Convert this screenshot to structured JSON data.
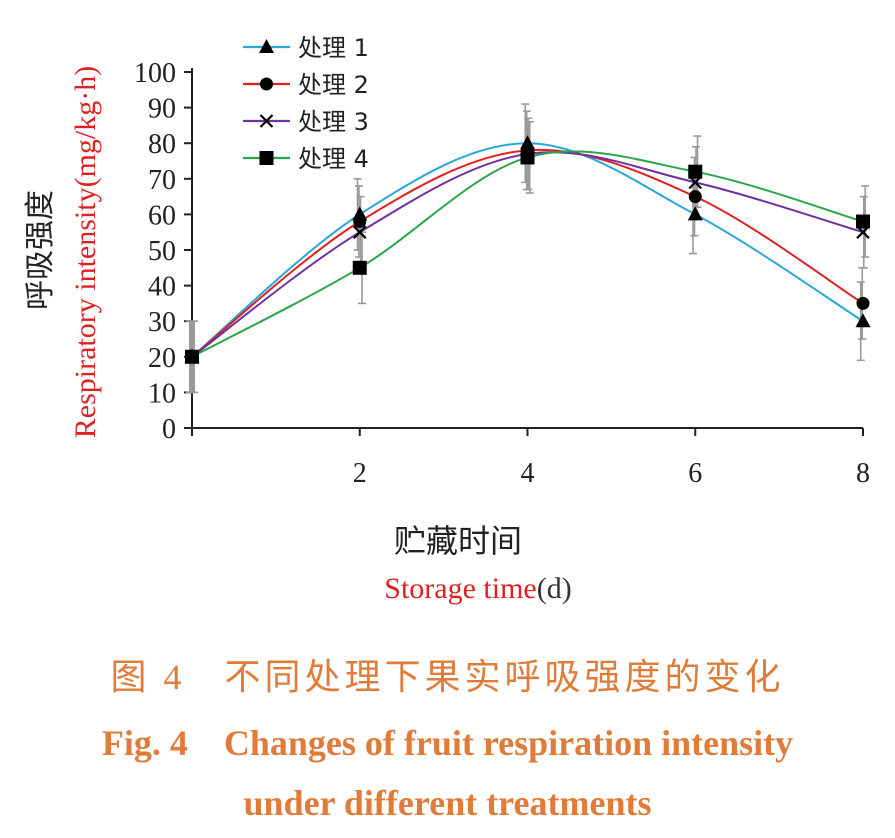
{
  "chart_data": {
    "type": "line",
    "x": [
      0,
      2,
      4,
      6,
      8
    ],
    "x_tick_labels": [
      "2",
      "4",
      "6",
      "8"
    ],
    "y_ticks": [
      0,
      10,
      20,
      30,
      40,
      50,
      60,
      70,
      80,
      90,
      100
    ],
    "ylim": [
      0,
      100
    ],
    "xlim": [
      0,
      8
    ],
    "ylabel_cn": "呼吸强度",
    "ylabel_en": "Respiratory intensity(mg/kg·h)",
    "xlabel_cn": "贮藏时间",
    "xlabel_en_main": "Storage time",
    "xlabel_en_unit": "(d)",
    "legend_position": "top-left",
    "series": [
      {
        "name": "处理 1",
        "marker": "triangle",
        "color": "#29a8d8",
        "values": [
          20,
          60,
          80,
          60,
          30
        ],
        "errors": [
          10,
          10,
          11,
          11,
          11
        ]
      },
      {
        "name": "处理 2",
        "marker": "circle",
        "color": "#e02020",
        "values": [
          20,
          58,
          78,
          65,
          35
        ],
        "errors": [
          10,
          10,
          11,
          11,
          10
        ]
      },
      {
        "name": "处理 3",
        "marker": "x",
        "color": "#7030a0",
        "values": [
          20,
          55,
          77,
          69,
          55
        ],
        "errors": [
          10,
          10,
          10,
          10,
          10
        ]
      },
      {
        "name": "处理 4",
        "marker": "square",
        "color": "#2aa64a",
        "values": [
          20,
          45,
          76,
          72,
          58
        ],
        "errors": [
          10,
          10,
          10,
          10,
          10
        ]
      }
    ]
  },
  "caption": {
    "cn_label": "图 4",
    "cn_text": "不同处理下果实呼吸强度的变化",
    "en_label": "Fig. 4",
    "en_text_line1": "Changes of fruit respiration intensity",
    "en_text_line2": "under different treatments"
  }
}
